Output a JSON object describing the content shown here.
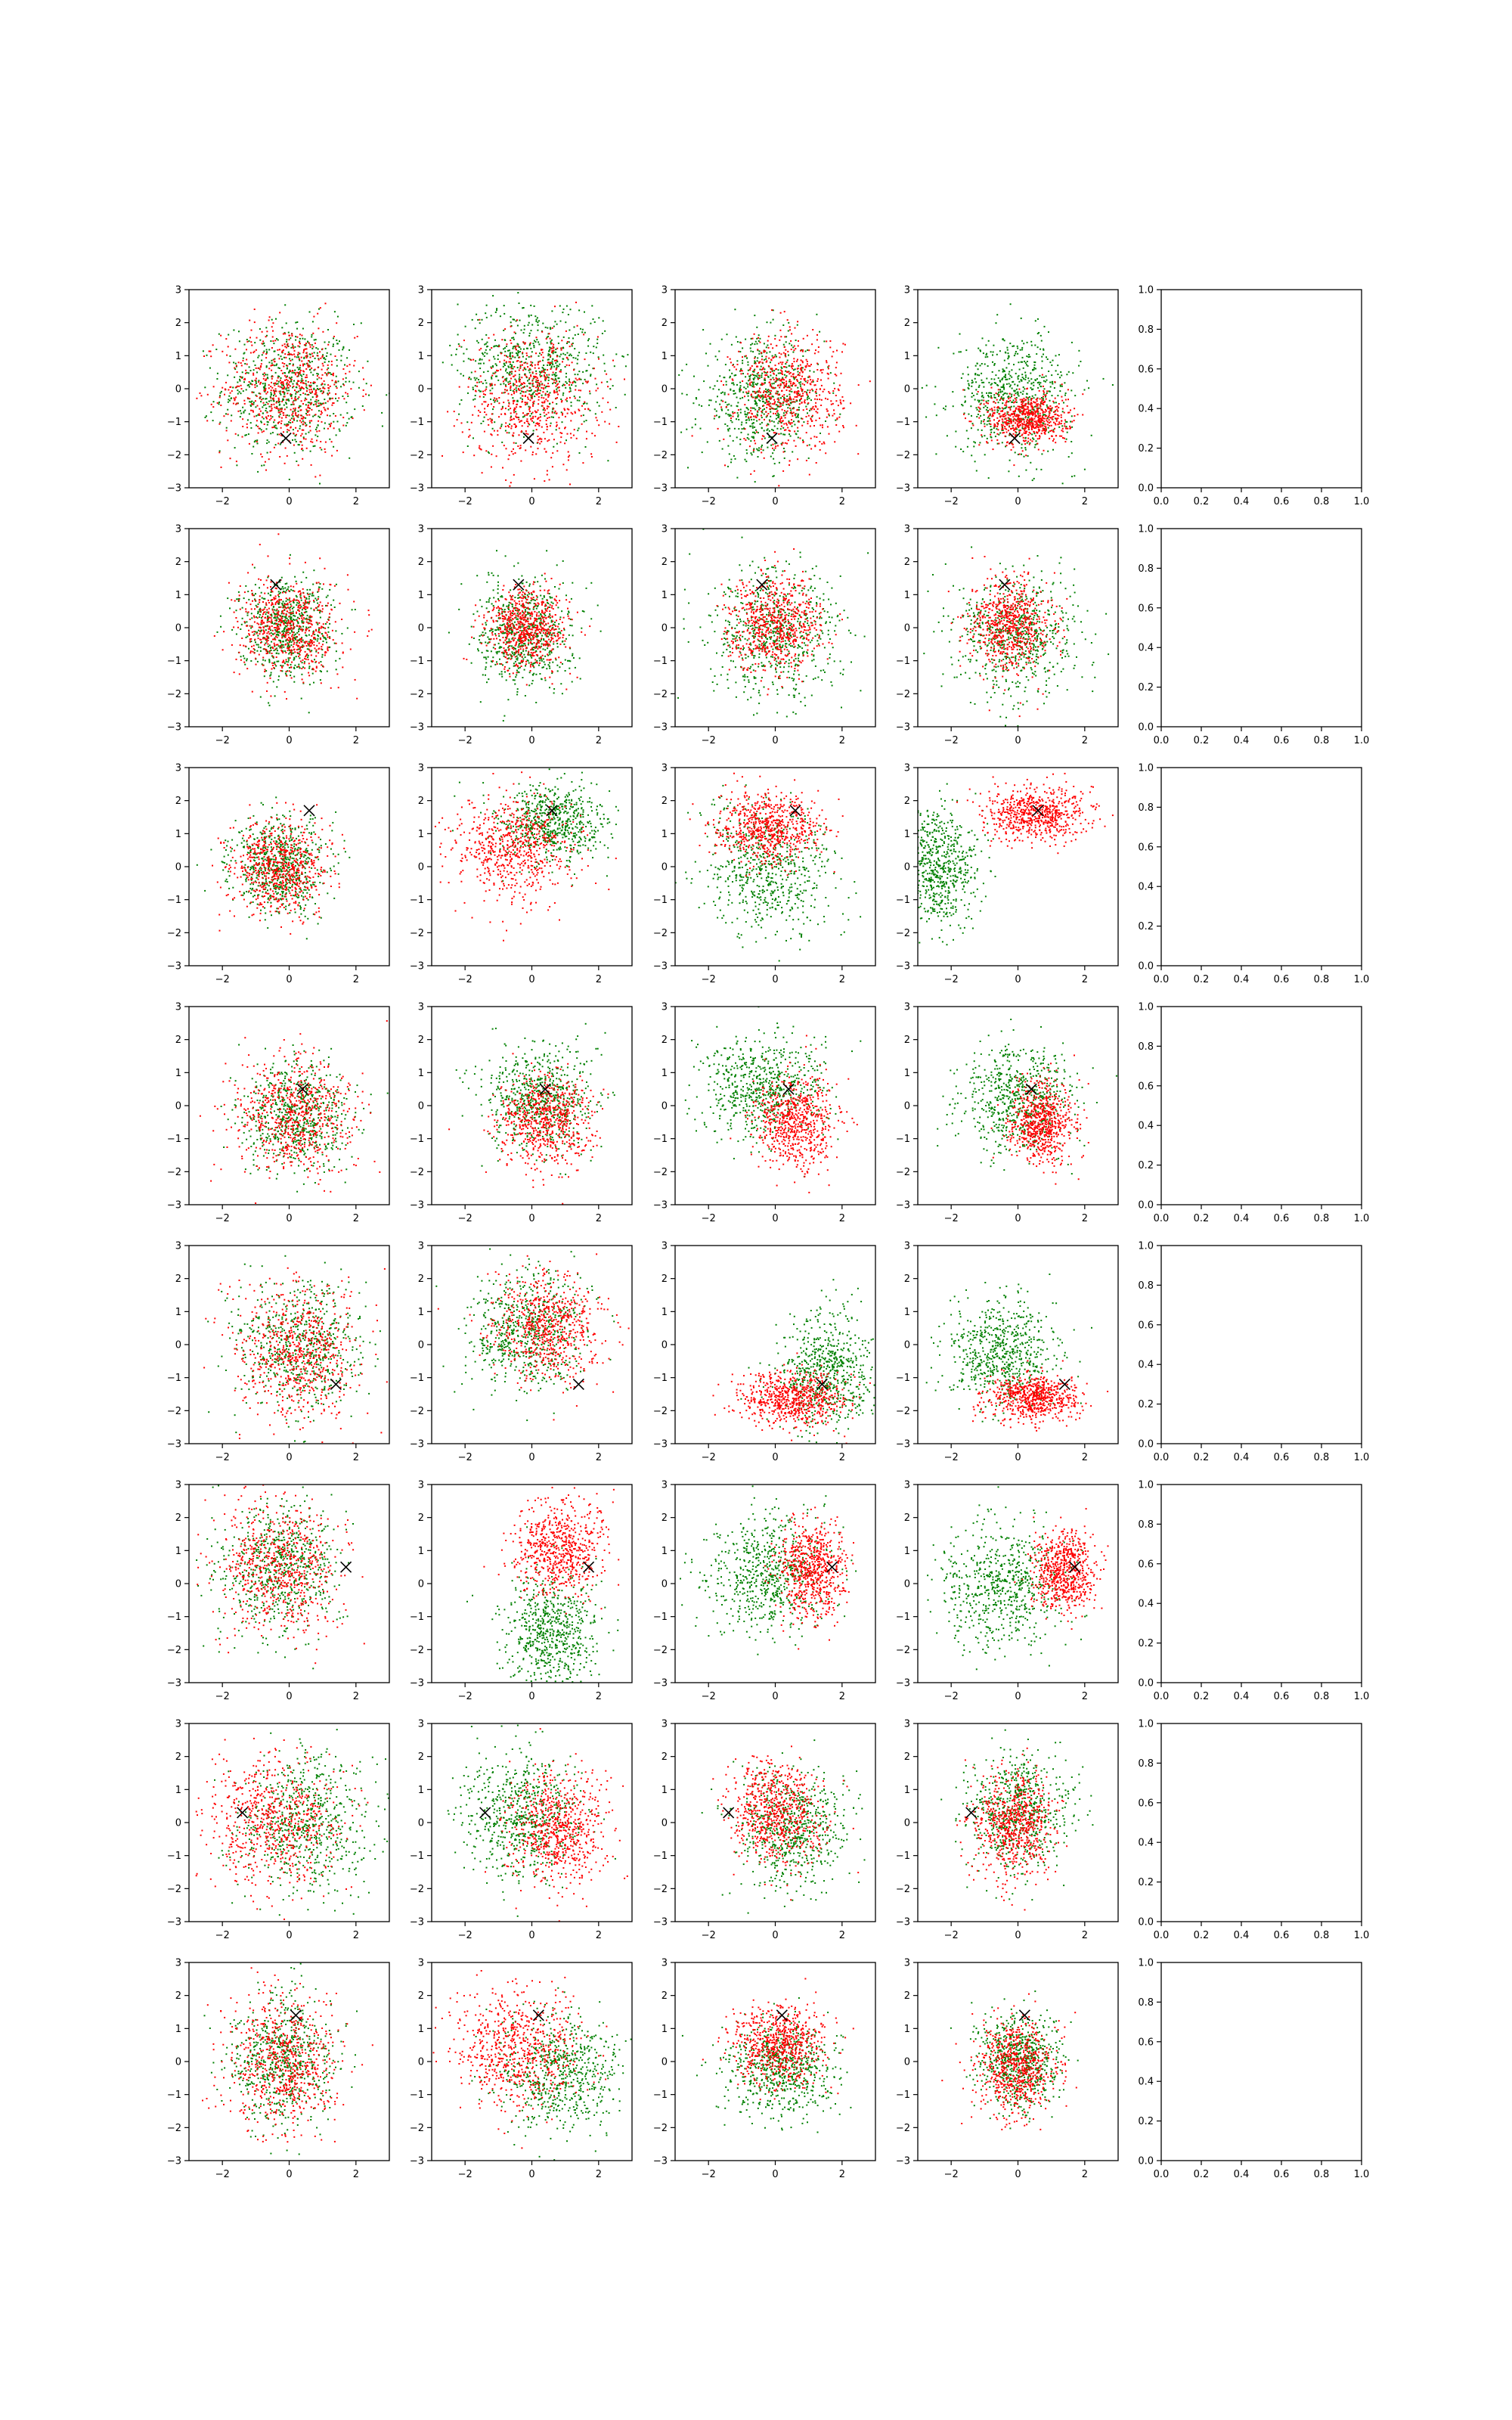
{
  "figure": {
    "type": "scatter-grid",
    "rows": 8,
    "cols": 5
  },
  "style": {
    "colors": {
      "series_a": "#008000",
      "series_b": "#ff0000",
      "marker": "#000000",
      "axes": "#000000",
      "background": "#ffffff"
    },
    "marker_shape": "x"
  },
  "chart_data": {
    "type": "scatter",
    "scatter_axes": {
      "xlim": [
        -3,
        3
      ],
      "ylim": [
        -3,
        3
      ],
      "xticks": [
        -2,
        0,
        2
      ],
      "yticks": [
        -3,
        -2,
        -1,
        0,
        1,
        2,
        3
      ]
    },
    "empty_axes": {
      "xlim": [
        0,
        1
      ],
      "ylim": [
        0,
        1
      ],
      "ticks": [
        0.0,
        0.2,
        0.4,
        0.6,
        0.8,
        1.0
      ],
      "tick_labels": [
        "0.0",
        "0.2",
        "0.4",
        "0.6",
        "0.8",
        "1.0"
      ]
    },
    "grid": false,
    "legend": "none",
    "rows": [
      {
        "marker": [
          -0.1,
          -1.5
        ],
        "panels": [
          {
            "green": {
              "cx": 0.0,
              "cy": 0.0,
              "sx": 1.0,
              "sy": 1.0
            },
            "red": {
              "cx": 0.0,
              "cy": 0.0,
              "sx": 1.0,
              "sy": 1.0
            }
          },
          {
            "green": {
              "cx": 0.0,
              "cy": 0.7,
              "sx": 1.1,
              "sy": 1.0
            },
            "red": {
              "cx": 0.0,
              "cy": -0.3,
              "sx": 1.0,
              "sy": 1.0
            }
          },
          {
            "green": {
              "cx": -0.4,
              "cy": -0.3,
              "sx": 0.9,
              "sy": 0.9
            },
            "red": {
              "cx": 0.4,
              "cy": -0.1,
              "sx": 0.8,
              "sy": 0.9
            }
          },
          {
            "green": {
              "cx": -0.1,
              "cy": -0.2,
              "sx": 0.9,
              "sy": 0.9
            },
            "red": {
              "cx": 0.3,
              "cy": -0.9,
              "sx": 0.6,
              "sy": 0.4
            }
          }
        ]
      },
      {
        "marker": [
          -0.4,
          1.3
        ],
        "panels": [
          {
            "green": {
              "cx": -0.1,
              "cy": 0.0,
              "sx": 0.7,
              "sy": 0.75
            },
            "red": {
              "cx": 0.0,
              "cy": 0.0,
              "sx": 0.75,
              "sy": 0.75
            }
          },
          {
            "green": {
              "cx": -0.2,
              "cy": -0.2,
              "sx": 0.7,
              "sy": 0.8
            },
            "red": {
              "cx": -0.1,
              "cy": 0.0,
              "sx": 0.6,
              "sy": 0.6
            }
          },
          {
            "green": {
              "cx": 0.0,
              "cy": -0.2,
              "sx": 1.0,
              "sy": 1.0
            },
            "red": {
              "cx": 0.0,
              "cy": 0.1,
              "sx": 0.7,
              "sy": 0.7
            }
          },
          {
            "green": {
              "cx": 0.0,
              "cy": -0.2,
              "sx": 0.9,
              "sy": 0.9
            },
            "red": {
              "cx": -0.2,
              "cy": 0.1,
              "sx": 0.6,
              "sy": 0.7
            }
          }
        ]
      },
      {
        "marker": [
          0.6,
          1.7
        ],
        "panels": [
          {
            "green": {
              "cx": -0.3,
              "cy": 0.0,
              "sx": 0.7,
              "sy": 0.7
            },
            "red": {
              "cx": -0.3,
              "cy": 0.0,
              "sx": 0.7,
              "sy": 0.7
            }
          },
          {
            "green": {
              "cx": 0.6,
              "cy": 1.3,
              "sx": 0.8,
              "sy": 0.6
            },
            "red": {
              "cx": -0.5,
              "cy": 0.5,
              "sx": 0.9,
              "sy": 0.8
            }
          },
          {
            "green": {
              "cx": -0.2,
              "cy": -0.1,
              "sx": 1.0,
              "sy": 1.0
            },
            "red": {
              "cx": -0.2,
              "cy": 1.2,
              "sx": 0.8,
              "sy": 0.5
            }
          },
          {
            "green": {
              "cx": -2.4,
              "cy": 0.0,
              "sx": 0.6,
              "sy": 0.9
            },
            "red": {
              "cx": 0.6,
              "cy": 1.6,
              "sx": 0.8,
              "sy": 0.4
            }
          }
        ]
      },
      {
        "marker": [
          0.4,
          0.5
        ],
        "panels": [
          {
            "green": {
              "cx": 0.2,
              "cy": -0.3,
              "sx": 0.8,
              "sy": 0.8
            },
            "red": {
              "cx": 0.1,
              "cy": -0.3,
              "sx": 0.9,
              "sy": 0.9
            }
          },
          {
            "green": {
              "cx": 0.2,
              "cy": 0.2,
              "sx": 0.8,
              "sy": 0.8
            },
            "red": {
              "cx": 0.4,
              "cy": -0.5,
              "sx": 0.7,
              "sy": 0.7
            }
          },
          {
            "green": {
              "cx": -0.4,
              "cy": 0.5,
              "sx": 0.9,
              "sy": 0.8
            },
            "red": {
              "cx": 0.6,
              "cy": -0.5,
              "sx": 0.6,
              "sy": 0.7
            }
          },
          {
            "green": {
              "cx": 0.0,
              "cy": 0.2,
              "sx": 0.8,
              "sy": 0.8
            },
            "red": {
              "cx": 0.7,
              "cy": -0.5,
              "sx": 0.5,
              "sy": 0.6
            }
          }
        ]
      },
      {
        "marker": [
          1.4,
          -1.2
        ],
        "panels": [
          {
            "green": {
              "cx": 0.3,
              "cy": 0.0,
              "sx": 0.9,
              "sy": 1.0
            },
            "red": {
              "cx": 0.3,
              "cy": -0.2,
              "sx": 0.9,
              "sy": 1.0
            }
          },
          {
            "green": {
              "cx": -0.2,
              "cy": 0.4,
              "sx": 0.9,
              "sy": 0.9
            },
            "red": {
              "cx": 0.5,
              "cy": 0.5,
              "sx": 0.8,
              "sy": 0.8
            }
          },
          {
            "green": {
              "cx": 1.6,
              "cy": -0.8,
              "sx": 0.7,
              "sy": 0.9
            },
            "red": {
              "cx": 0.5,
              "cy": -1.7,
              "sx": 0.8,
              "sy": 0.4
            }
          },
          {
            "green": {
              "cx": -0.4,
              "cy": -0.3,
              "sx": 0.8,
              "sy": 0.8
            },
            "red": {
              "cx": 0.5,
              "cy": -1.6,
              "sx": 0.7,
              "sy": 0.35
            }
          }
        ]
      },
      {
        "marker": [
          1.7,
          0.5
        ],
        "panels": [
          {
            "green": {
              "cx": -0.3,
              "cy": 0.5,
              "sx": 0.9,
              "sy": 1.0
            },
            "red": {
              "cx": -0.3,
              "cy": 0.5,
              "sx": 0.9,
              "sy": 1.0
            }
          },
          {
            "green": {
              "cx": 0.6,
              "cy": -1.4,
              "sx": 0.7,
              "sy": 0.9
            },
            "red": {
              "cx": 0.8,
              "cy": 1.0,
              "sx": 0.7,
              "sy": 0.7
            }
          },
          {
            "green": {
              "cx": -0.2,
              "cy": 0.3,
              "sx": 0.9,
              "sy": 0.9
            },
            "red": {
              "cx": 1.1,
              "cy": 0.4,
              "sx": 0.5,
              "sy": 0.7
            }
          },
          {
            "green": {
              "cx": -0.5,
              "cy": 0.0,
              "sx": 0.9,
              "sy": 0.9
            },
            "red": {
              "cx": 1.4,
              "cy": 0.4,
              "sx": 0.45,
              "sy": 0.6
            }
          }
        ]
      },
      {
        "marker": [
          -1.4,
          0.3
        ],
        "panels": [
          {
            "green": {
              "cx": 0.5,
              "cy": 0.0,
              "sx": 1.0,
              "sy": 1.0
            },
            "red": {
              "cx": -0.5,
              "cy": 0.0,
              "sx": 1.0,
              "sy": 1.0
            }
          },
          {
            "green": {
              "cx": -0.3,
              "cy": 0.2,
              "sx": 0.9,
              "sy": 0.9
            },
            "red": {
              "cx": 0.8,
              "cy": -0.3,
              "sx": 0.7,
              "sy": 0.8
            }
          },
          {
            "green": {
              "cx": 0.5,
              "cy": -0.2,
              "sx": 0.8,
              "sy": 0.9
            },
            "red": {
              "cx": 0.0,
              "cy": 0.3,
              "sx": 0.7,
              "sy": 0.8
            }
          },
          {
            "green": {
              "cx": 0.0,
              "cy": 0.3,
              "sx": 0.8,
              "sy": 0.9
            },
            "red": {
              "cx": -0.1,
              "cy": -0.1,
              "sx": 0.6,
              "sy": 0.8
            }
          }
        ]
      },
      {
        "marker": [
          0.2,
          1.4
        ],
        "panels": [
          {
            "green": {
              "cx": -0.2,
              "cy": 0.0,
              "sx": 0.8,
              "sy": 1.0
            },
            "red": {
              "cx": -0.2,
              "cy": 0.0,
              "sx": 0.8,
              "sy": 1.0
            }
          },
          {
            "green": {
              "cx": 0.8,
              "cy": -0.4,
              "sx": 0.9,
              "sy": 0.9
            },
            "red": {
              "cx": -0.4,
              "cy": 0.4,
              "sx": 0.9,
              "sy": 0.9
            }
          },
          {
            "green": {
              "cx": 0.2,
              "cy": -0.3,
              "sx": 0.8,
              "sy": 0.7
            },
            "red": {
              "cx": 0.1,
              "cy": 0.5,
              "sx": 0.7,
              "sy": 0.6
            }
          },
          {
            "green": {
              "cx": 0.0,
              "cy": 0.0,
              "sx": 0.6,
              "sy": 0.7
            },
            "red": {
              "cx": 0.0,
              "cy": -0.2,
              "sx": 0.6,
              "sy": 0.7
            }
          }
        ]
      }
    ]
  }
}
